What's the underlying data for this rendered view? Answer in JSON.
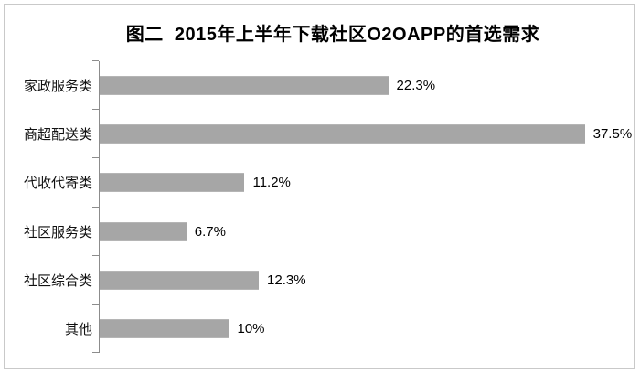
{
  "chart_data": {
    "type": "bar",
    "orientation": "horizontal",
    "title": "图二  2015年上半年下载社区O2OAPP的首选需求",
    "categories": [
      "家政服务类",
      "商超配送类",
      "代收代寄类",
      "社区服务类",
      "社区综合类",
      "其他"
    ],
    "values": [
      22.3,
      37.5,
      11.2,
      6.7,
      12.3,
      10
    ],
    "value_labels": [
      "22.3%",
      "37.5%",
      "11.2%",
      "6.7%",
      "12.3%",
      "10%"
    ],
    "xlabel": "",
    "ylabel": "",
    "xlim": [
      0,
      40
    ],
    "grid": false,
    "legend": false,
    "bar_color": "#a6a6a6",
    "axis_color": "#8c8c8c",
    "frame_color": "#c9c9c9",
    "text_color": "#000000"
  }
}
